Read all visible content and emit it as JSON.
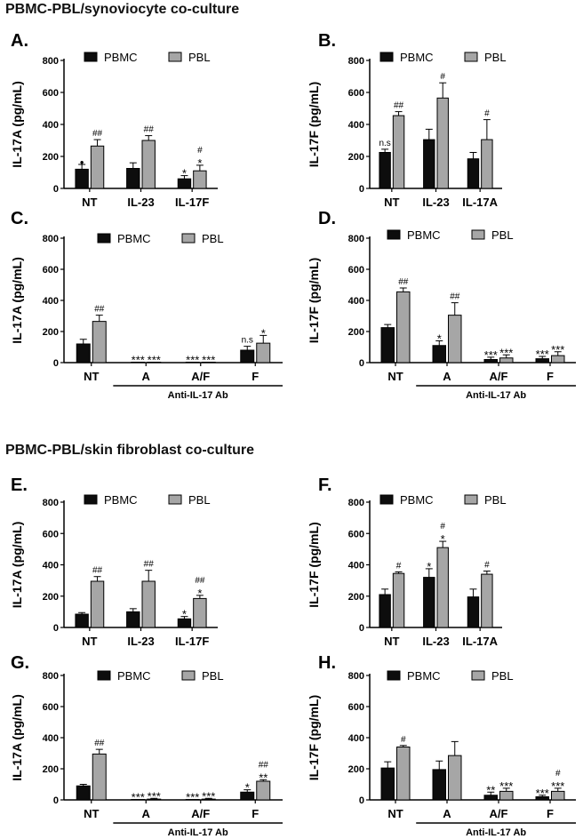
{
  "section_titles": [
    "PBMC-PBL/synoviocyte co-culture",
    "PBMC-PBL/skin fibroblast co-culture"
  ],
  "colors": {
    "PBMC": "#0d0d0d",
    "PBL": "#a6a6a6",
    "axis": "#000000"
  },
  "chart_data": [
    {
      "panel": "A.",
      "type": "bar",
      "ylabel": "IL-17A (pg/mL)",
      "ylim": [
        0,
        800
      ],
      "yticks": [
        0,
        200,
        400,
        600,
        800
      ],
      "categories": [
        "NT",
        "IL-23",
        "IL-17F"
      ],
      "legend": [
        "PBMC",
        "PBL"
      ],
      "group_label": "",
      "series": [
        {
          "name": "PBMC",
          "values": [
            120,
            125,
            60
          ],
          "errors": [
            30,
            35,
            20
          ],
          "annotations": [
            "•",
            "",
            "*"
          ]
        },
        {
          "name": "PBL",
          "values": [
            265,
            300,
            110
          ],
          "errors": [
            40,
            30,
            35
          ],
          "annotations": [
            "##",
            "##",
            "#\n*"
          ]
        }
      ]
    },
    {
      "panel": "B.",
      "type": "bar",
      "ylabel": "IL-17F (pg/mL)",
      "ylim": [
        0,
        800
      ],
      "yticks": [
        0,
        200,
        400,
        600,
        800
      ],
      "categories": [
        "NT",
        "IL-23",
        "IL-17A"
      ],
      "legend": [
        "PBMC",
        "PBL"
      ],
      "group_label": "",
      "series": [
        {
          "name": "PBMC",
          "values": [
            225,
            305,
            185
          ],
          "errors": [
            20,
            65,
            40
          ],
          "annotations": [
            "n.s",
            "",
            ""
          ]
        },
        {
          "name": "PBL",
          "values": [
            455,
            565,
            305
          ],
          "errors": [
            25,
            95,
            125
          ],
          "annotations": [
            "##",
            "#",
            "#"
          ]
        }
      ]
    },
    {
      "panel": "C.",
      "type": "bar",
      "ylabel": "IL-17A (pg/mL)",
      "ylim": [
        0,
        800
      ],
      "yticks": [
        0,
        200,
        400,
        600,
        800
      ],
      "categories": [
        "NT",
        "A",
        "A/F",
        "F"
      ],
      "legend": [
        "PBMC",
        "PBL"
      ],
      "group_label": "Anti-IL-17 Ab",
      "series": [
        {
          "name": "PBMC",
          "values": [
            120,
            3,
            3,
            80
          ],
          "errors": [
            30,
            0,
            0,
            25
          ],
          "annotations": [
            "",
            "***",
            "***",
            "n.s"
          ]
        },
        {
          "name": "PBL",
          "values": [
            265,
            3,
            3,
            125
          ],
          "errors": [
            40,
            0,
            0,
            50
          ],
          "annotations": [
            "##",
            "***",
            "***",
            "*"
          ]
        }
      ]
    },
    {
      "panel": "D.",
      "type": "bar",
      "ylabel": "IL-17F (pg/mL)",
      "ylim": [
        0,
        800
      ],
      "yticks": [
        0,
        200,
        400,
        600,
        800
      ],
      "categories": [
        "NT",
        "A",
        "A/F",
        "F"
      ],
      "legend": [
        "PBMC",
        "PBL"
      ],
      "group_label": "Anti-IL-17 Ab",
      "series": [
        {
          "name": "PBMC",
          "values": [
            225,
            110,
            20,
            25
          ],
          "errors": [
            20,
            30,
            15,
            15
          ],
          "annotations": [
            "",
            "*",
            "***",
            "***"
          ]
        },
        {
          "name": "PBL",
          "values": [
            455,
            305,
            30,
            45
          ],
          "errors": [
            25,
            80,
            20,
            25
          ],
          "annotations": [
            "##",
            "##",
            "***",
            "***"
          ]
        }
      ]
    },
    {
      "panel": "E.",
      "type": "bar",
      "ylabel": "IL-17A (pg/mL)",
      "ylim": [
        0,
        800
      ],
      "yticks": [
        0,
        200,
        400,
        600,
        800
      ],
      "categories": [
        "NT",
        "IL-23",
        "IL-17F"
      ],
      "legend": [
        "PBMC",
        "PBL"
      ],
      "group_label": "",
      "series": [
        {
          "name": "PBMC",
          "values": [
            85,
            100,
            55
          ],
          "errors": [
            10,
            20,
            15
          ],
          "annotations": [
            "",
            "",
            "*"
          ]
        },
        {
          "name": "PBL",
          "values": [
            295,
            295,
            185
          ],
          "errors": [
            30,
            70,
            20
          ],
          "annotations": [
            "##",
            "##",
            "##\n*"
          ]
        }
      ]
    },
    {
      "panel": "F.",
      "type": "bar",
      "ylabel": "IL-17F (pg/mL)",
      "ylim": [
        0,
        800
      ],
      "yticks": [
        0,
        200,
        400,
        600,
        800
      ],
      "categories": [
        "NT",
        "IL-23",
        "IL-17A"
      ],
      "legend": [
        "PBMC",
        "PBL"
      ],
      "group_label": "",
      "series": [
        {
          "name": "PBMC",
          "values": [
            210,
            320,
            195
          ],
          "errors": [
            35,
            55,
            50
          ],
          "annotations": [
            "",
            "*",
            ""
          ]
        },
        {
          "name": "PBL",
          "values": [
            345,
            510,
            340
          ],
          "errors": [
            10,
            40,
            20
          ],
          "annotations": [
            "#",
            "#\n*",
            "#"
          ]
        }
      ]
    },
    {
      "panel": "G.",
      "type": "bar",
      "ylabel": "IL-17A (pg/mL)",
      "ylim": [
        0,
        800
      ],
      "yticks": [
        0,
        200,
        400,
        600,
        800
      ],
      "categories": [
        "NT",
        "A",
        "A/F",
        "F"
      ],
      "legend": [
        "PBMC",
        "PBL"
      ],
      "group_label": "Anti-IL-17 Ab",
      "series": [
        {
          "name": "PBMC",
          "values": [
            90,
            3,
            3,
            50
          ],
          "errors": [
            10,
            0,
            0,
            15
          ],
          "annotations": [
            "",
            "***",
            "***",
            "*"
          ]
        },
        {
          "name": "PBL",
          "values": [
            295,
            5,
            5,
            120
          ],
          "errors": [
            30,
            5,
            5,
            10
          ],
          "annotations": [
            "##",
            "***",
            "***",
            "##\n**"
          ]
        }
      ]
    },
    {
      "panel": "H.",
      "type": "bar",
      "ylabel": "IL-17F (pg/mL)",
      "ylim": [
        0,
        800
      ],
      "yticks": [
        0,
        200,
        400,
        600,
        800
      ],
      "categories": [
        "NT",
        "A",
        "A/F",
        "F"
      ],
      "legend": [
        "PBMC",
        "PBL"
      ],
      "group_label": "Anti-IL-17 Ab",
      "series": [
        {
          "name": "PBMC",
          "values": [
            205,
            195,
            30,
            20
          ],
          "errors": [
            40,
            55,
            20,
            10
          ],
          "annotations": [
            "",
            "",
            "**",
            "***"
          ]
        },
        {
          "name": "PBL",
          "values": [
            340,
            285,
            55,
            55
          ],
          "errors": [
            10,
            90,
            20,
            20
          ],
          "annotations": [
            "#",
            "",
            "***",
            "#\n***"
          ]
        }
      ]
    }
  ]
}
